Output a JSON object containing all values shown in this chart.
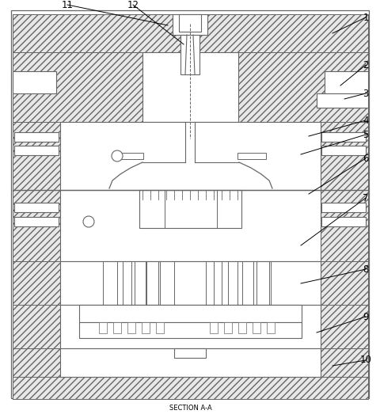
{
  "fig_width": 4.81,
  "fig_height": 5.28,
  "dpi": 100,
  "bg_color": "#ffffff",
  "line_color": "#666666",
  "section_label": "SECTION A-A",
  "hatch_pattern": "////",
  "hatch_lw": 0.4,
  "hatch_fc": "#e8e8e8"
}
